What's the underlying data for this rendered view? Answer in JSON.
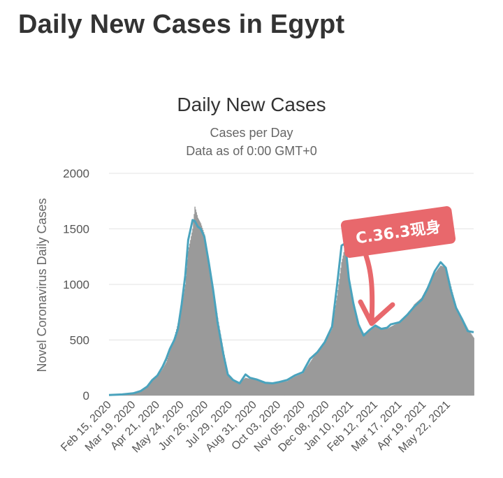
{
  "page": {
    "title": "Daily New Cases in Egypt"
  },
  "annotation": {
    "text": "C.36.3现身",
    "color": "#e8686c"
  },
  "colors": {
    "bars": "#9a9a9a",
    "line": "#4aa3bd",
    "grid": "#e3e3e3"
  },
  "chart_data": {
    "type": "bar",
    "title": "Daily New Cases",
    "subtitle": "Cases per Day",
    "subtitle2": "Data as of 0:00 GMT+0",
    "ylabel": "Novel Coronavirus Daily Cases",
    "xlabel": "",
    "ylim": [
      0,
      2000
    ],
    "yticks": [
      0,
      500,
      1000,
      1500,
      2000
    ],
    "xlim": [
      "2020-02-15",
      "2021-06-26"
    ],
    "x_tick_labels": [
      "Feb 15, 2020",
      "Mar 19, 2020",
      "Apr 21, 2020",
      "May 24, 2020",
      "Jun 26, 2020",
      "Jul 29, 2020",
      "Aug 31, 2020",
      "Oct 03, 2020",
      "Nov 05, 2020",
      "Dec 08, 2020",
      "Jan 10, 2021",
      "Feb 12, 2021",
      "Mar 17, 2021",
      "Apr 19, 2021",
      "May 22, 2021"
    ],
    "grid": true,
    "series": [
      {
        "kind": "bar",
        "points": [
          [
            "2020-02-15",
            0
          ],
          [
            "2020-03-04",
            10
          ],
          [
            "2020-03-19",
            20
          ],
          [
            "2020-03-29",
            40
          ],
          [
            "2020-04-07",
            80
          ],
          [
            "2020-04-14",
            140
          ],
          [
            "2020-04-21",
            170
          ],
          [
            "2020-04-28",
            240
          ],
          [
            "2020-05-03",
            300
          ],
          [
            "2020-05-08",
            400
          ],
          [
            "2020-05-14",
            520
          ],
          [
            "2020-05-19",
            650
          ],
          [
            "2020-05-24",
            800
          ],
          [
            "2020-05-29",
            1000
          ],
          [
            "2020-06-02",
            1300
          ],
          [
            "2020-06-08",
            1500
          ],
          [
            "2020-06-11",
            1700
          ],
          [
            "2020-06-15",
            1600
          ],
          [
            "2020-06-19",
            1550
          ],
          [
            "2020-06-24",
            1450
          ],
          [
            "2020-06-30",
            1200
          ],
          [
            "2020-07-06",
            950
          ],
          [
            "2020-07-12",
            700
          ],
          [
            "2020-07-20",
            400
          ],
          [
            "2020-07-26",
            200
          ],
          [
            "2020-08-02",
            140
          ],
          [
            "2020-08-11",
            120
          ],
          [
            "2020-08-19",
            160
          ],
          [
            "2020-08-25",
            150
          ],
          [
            "2020-09-03",
            140
          ],
          [
            "2020-09-15",
            120
          ],
          [
            "2020-09-25",
            110
          ],
          [
            "2020-10-03",
            115
          ],
          [
            "2020-10-15",
            130
          ],
          [
            "2020-10-25",
            170
          ],
          [
            "2020-11-05",
            200
          ],
          [
            "2020-11-15",
            300
          ],
          [
            "2020-11-25",
            400
          ],
          [
            "2020-12-05",
            470
          ],
          [
            "2020-12-15",
            600
          ],
          [
            "2020-12-22",
            900
          ],
          [
            "2020-12-28",
            1200
          ],
          [
            "2021-01-02",
            1350
          ],
          [
            "2021-01-07",
            1050
          ],
          [
            "2021-01-13",
            800
          ],
          [
            "2021-01-20",
            640
          ],
          [
            "2021-01-27",
            560
          ],
          [
            "2021-02-04",
            580
          ],
          [
            "2021-02-12",
            620
          ],
          [
            "2021-02-20",
            610
          ],
          [
            "2021-02-28",
            600
          ],
          [
            "2021-03-05",
            620
          ],
          [
            "2021-03-17",
            660
          ],
          [
            "2021-03-28",
            720
          ],
          [
            "2021-04-06",
            820
          ],
          [
            "2021-04-16",
            880
          ],
          [
            "2021-04-24",
            980
          ],
          [
            "2021-05-04",
            1100
          ],
          [
            "2021-05-12",
            1170
          ],
          [
            "2021-05-19",
            1150
          ],
          [
            "2021-05-26",
            980
          ],
          [
            "2021-06-02",
            800
          ],
          [
            "2021-06-10",
            700
          ],
          [
            "2021-06-18",
            600
          ],
          [
            "2021-06-26",
            520
          ]
        ]
      },
      {
        "kind": "line",
        "points": [
          [
            "2020-02-15",
            5
          ],
          [
            "2020-03-04",
            10
          ],
          [
            "2020-03-19",
            20
          ],
          [
            "2020-03-29",
            40
          ],
          [
            "2020-04-07",
            80
          ],
          [
            "2020-04-14",
            140
          ],
          [
            "2020-04-21",
            180
          ],
          [
            "2020-04-28",
            260
          ],
          [
            "2020-05-03",
            330
          ],
          [
            "2020-05-08",
            420
          ],
          [
            "2020-05-14",
            500
          ],
          [
            "2020-05-19",
            600
          ],
          [
            "2020-05-24",
            820
          ],
          [
            "2020-05-29",
            1080
          ],
          [
            "2020-06-02",
            1400
          ],
          [
            "2020-06-08",
            1580
          ],
          [
            "2020-06-11",
            1570
          ],
          [
            "2020-06-15",
            1520
          ],
          [
            "2020-06-19",
            1500
          ],
          [
            "2020-06-24",
            1430
          ],
          [
            "2020-06-30",
            1200
          ],
          [
            "2020-07-06",
            950
          ],
          [
            "2020-07-12",
            660
          ],
          [
            "2020-07-20",
            370
          ],
          [
            "2020-07-26",
            190
          ],
          [
            "2020-08-02",
            140
          ],
          [
            "2020-08-11",
            110
          ],
          [
            "2020-08-19",
            190
          ],
          [
            "2020-08-25",
            160
          ],
          [
            "2020-09-03",
            145
          ],
          [
            "2020-09-15",
            115
          ],
          [
            "2020-09-25",
            110
          ],
          [
            "2020-10-03",
            120
          ],
          [
            "2020-10-15",
            140
          ],
          [
            "2020-10-25",
            180
          ],
          [
            "2020-11-05",
            210
          ],
          [
            "2020-11-15",
            330
          ],
          [
            "2020-11-25",
            390
          ],
          [
            "2020-12-05",
            480
          ],
          [
            "2020-12-15",
            620
          ],
          [
            "2020-12-22",
            1000
          ],
          [
            "2020-12-28",
            1350
          ],
          [
            "2021-01-02",
            1370
          ],
          [
            "2021-01-07",
            1050
          ],
          [
            "2021-01-13",
            830
          ],
          [
            "2021-01-20",
            640
          ],
          [
            "2021-01-27",
            540
          ],
          [
            "2021-02-04",
            590
          ],
          [
            "2021-02-12",
            630
          ],
          [
            "2021-02-20",
            600
          ],
          [
            "2021-02-28",
            610
          ],
          [
            "2021-03-05",
            640
          ],
          [
            "2021-03-17",
            660
          ],
          [
            "2021-03-28",
            730
          ],
          [
            "2021-04-06",
            800
          ],
          [
            "2021-04-16",
            860
          ],
          [
            "2021-04-24",
            960
          ],
          [
            "2021-05-04",
            1120
          ],
          [
            "2021-05-12",
            1200
          ],
          [
            "2021-05-19",
            1150
          ],
          [
            "2021-05-26",
            950
          ],
          [
            "2021-06-02",
            790
          ],
          [
            "2021-06-10",
            690
          ],
          [
            "2021-06-18",
            580
          ],
          [
            "2021-06-26",
            570
          ]
        ]
      }
    ]
  }
}
